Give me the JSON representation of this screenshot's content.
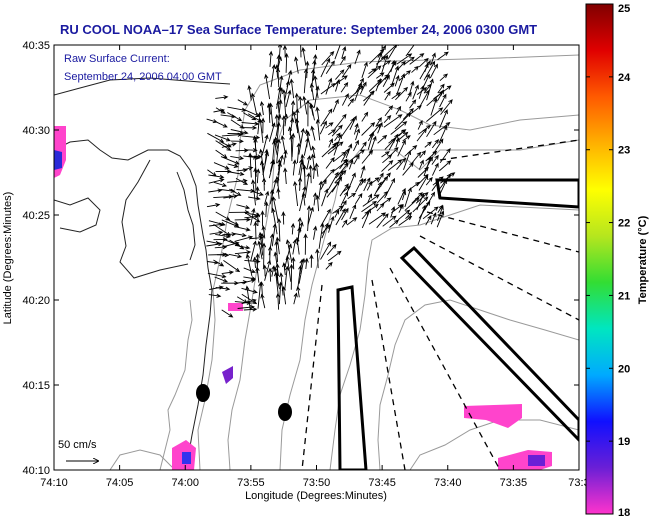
{
  "title": "RU COOL  NOAA–17  Sea Surface Temperature:  September 24, 2006 0300 GMT",
  "inset": {
    "line1": "Raw Surface Current:",
    "line2": "September 24, 2006 04:00 GMT"
  },
  "scale_label": "50 cm/s",
  "xaxis": {
    "label": "Longitude (Degrees:Minutes)",
    "ticks": [
      "74:10",
      "74:05",
      "74:00",
      "73:55",
      "73:50",
      "73:45",
      "73:40",
      "73:35",
      "73:3"
    ]
  },
  "yaxis": {
    "label": "Latitude (Degrees:Minutes)",
    "ticks": [
      "40:35",
      "40:30",
      "40:25",
      "40:20",
      "40:15",
      "40:10"
    ]
  },
  "colorbar": {
    "label": "Temperature (°C)",
    "ticks": [
      "25",
      "24",
      "23",
      "22",
      "21",
      "20",
      "19",
      "18"
    ],
    "min": 18,
    "max": 25,
    "colors": [
      "#ff33cc",
      "#6a1fd6",
      "#1010ff",
      "#00aaff",
      "#00e6c0",
      "#33dd33",
      "#b6e61e",
      "#ffff00",
      "#ffb000",
      "#ff5a00",
      "#e00000",
      "#800000"
    ]
  }
}
